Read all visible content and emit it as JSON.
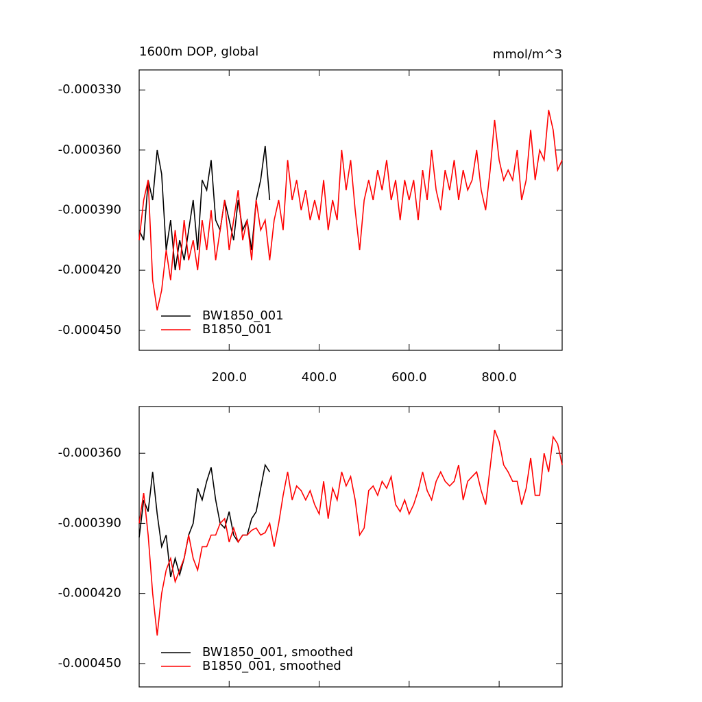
{
  "chart_data": [
    {
      "type": "line",
      "title": "1600m DOP, global",
      "units": "mmol/m^3",
      "xlim": [
        0,
        940
      ],
      "ylim": [
        -0.00046,
        -0.00032
      ],
      "xticks": [
        {
          "value": 200,
          "label": "200.0"
        },
        {
          "value": 400,
          "label": "400.0"
        },
        {
          "value": 600,
          "label": "600.0"
        },
        {
          "value": 800,
          "label": "800.0"
        }
      ],
      "yticks": [
        {
          "value": -0.00033,
          "label": "-0.000330"
        },
        {
          "value": -0.00036,
          "label": "-0.000360"
        },
        {
          "value": -0.00039,
          "label": "-0.000390"
        },
        {
          "value": -0.00042,
          "label": "-0.000420"
        },
        {
          "value": -0.00045,
          "label": "-0.000450"
        }
      ],
      "legend": "lower left",
      "series": [
        {
          "name": "BW1850_001",
          "color": "#000000",
          "x": [
            0,
            10,
            20,
            30,
            40,
            50,
            60,
            70,
            80,
            90,
            100,
            110,
            120,
            130,
            140,
            150,
            160,
            170,
            180,
            190,
            200,
            210,
            220,
            230,
            240,
            250,
            260,
            270,
            280,
            290
          ],
          "values": [
            -0.0004,
            -0.000405,
            -0.000375,
            -0.000385,
            -0.00036,
            -0.000372,
            -0.00041,
            -0.000395,
            -0.00042,
            -0.000405,
            -0.000415,
            -0.0004,
            -0.000385,
            -0.00041,
            -0.000375,
            -0.00038,
            -0.000365,
            -0.000395,
            -0.0004,
            -0.000385,
            -0.000395,
            -0.000405,
            -0.000385,
            -0.0004,
            -0.000395,
            -0.00041,
            -0.000385,
            -0.000375,
            -0.000358,
            -0.000385
          ]
        },
        {
          "name": "B1850_001",
          "color": "#ff0000",
          "x": [
            0,
            10,
            20,
            30,
            40,
            50,
            60,
            70,
            80,
            90,
            100,
            110,
            120,
            130,
            140,
            150,
            160,
            170,
            180,
            190,
            200,
            210,
            220,
            230,
            240,
            250,
            260,
            270,
            280,
            290,
            300,
            310,
            320,
            330,
            340,
            350,
            360,
            370,
            380,
            390,
            400,
            410,
            420,
            430,
            440,
            450,
            460,
            470,
            480,
            490,
            500,
            510,
            520,
            530,
            540,
            550,
            560,
            570,
            580,
            590,
            600,
            610,
            620,
            630,
            640,
            650,
            660,
            670,
            680,
            690,
            700,
            710,
            720,
            730,
            740,
            750,
            760,
            770,
            780,
            790,
            800,
            810,
            820,
            830,
            840,
            850,
            860,
            870,
            880,
            890,
            900,
            910,
            920,
            930,
            940
          ],
          "values": [
            -0.000405,
            -0.000385,
            -0.000375,
            -0.000425,
            -0.00044,
            -0.00043,
            -0.00041,
            -0.000425,
            -0.0004,
            -0.00042,
            -0.000395,
            -0.000415,
            -0.000405,
            -0.00042,
            -0.000395,
            -0.00041,
            -0.00039,
            -0.000415,
            -0.0004,
            -0.000385,
            -0.00041,
            -0.000395,
            -0.00038,
            -0.000405,
            -0.000395,
            -0.000415,
            -0.000385,
            -0.0004,
            -0.000395,
            -0.000415,
            -0.000395,
            -0.000385,
            -0.0004,
            -0.000365,
            -0.000385,
            -0.000375,
            -0.00039,
            -0.00038,
            -0.000395,
            -0.000385,
            -0.000395,
            -0.000375,
            -0.0004,
            -0.000385,
            -0.000395,
            -0.00036,
            -0.00038,
            -0.000365,
            -0.00039,
            -0.00041,
            -0.000385,
            -0.000375,
            -0.000385,
            -0.00037,
            -0.00038,
            -0.000365,
            -0.000385,
            -0.000375,
            -0.000395,
            -0.000375,
            -0.000385,
            -0.000375,
            -0.000395,
            -0.00037,
            -0.000385,
            -0.00036,
            -0.00038,
            -0.00039,
            -0.00037,
            -0.00038,
            -0.000365,
            -0.000385,
            -0.00037,
            -0.00038,
            -0.000375,
            -0.00036,
            -0.00038,
            -0.00039,
            -0.00037,
            -0.000345,
            -0.000365,
            -0.000375,
            -0.00037,
            -0.000375,
            -0.00036,
            -0.000385,
            -0.000375,
            -0.00035,
            -0.000375,
            -0.00036,
            -0.000365,
            -0.00034,
            -0.00035,
            -0.00037,
            -0.000365
          ]
        }
      ]
    },
    {
      "type": "line",
      "xlim": [
        0,
        940
      ],
      "ylim": [
        -0.00046,
        -0.00034
      ],
      "xticks": [
        200,
        400,
        600,
        800
      ],
      "yticks": [
        {
          "value": -0.00036,
          "label": "-0.000360"
        },
        {
          "value": -0.00039,
          "label": "-0.000390"
        },
        {
          "value": -0.00042,
          "label": "-0.000420"
        },
        {
          "value": -0.00045,
          "label": "-0.000450"
        }
      ],
      "legend": "lower left",
      "series": [
        {
          "name": "BW1850_001, smoothed",
          "color": "#000000",
          "x": [
            0,
            10,
            20,
            30,
            40,
            50,
            60,
            70,
            80,
            90,
            100,
            110,
            120,
            130,
            140,
            150,
            160,
            170,
            180,
            190,
            200,
            210,
            220,
            230,
            240,
            250,
            260,
            270,
            280,
            290
          ],
          "values": [
            -0.000396,
            -0.00038,
            -0.000385,
            -0.000368,
            -0.000386,
            -0.0004,
            -0.000395,
            -0.000413,
            -0.000405,
            -0.000412,
            -0.000405,
            -0.000395,
            -0.00039,
            -0.000375,
            -0.00038,
            -0.000372,
            -0.000366,
            -0.00038,
            -0.00039,
            -0.000392,
            -0.000385,
            -0.000395,
            -0.000398,
            -0.000395,
            -0.000395,
            -0.000388,
            -0.000385,
            -0.000375,
            -0.000365,
            -0.000368
          ]
        },
        {
          "name": "B1850_001, smoothed",
          "color": "#ff0000",
          "x": [
            0,
            10,
            20,
            30,
            40,
            50,
            60,
            70,
            80,
            90,
            100,
            110,
            120,
            130,
            140,
            150,
            160,
            170,
            180,
            190,
            200,
            210,
            220,
            230,
            240,
            250,
            260,
            270,
            280,
            290,
            300,
            310,
            320,
            330,
            340,
            350,
            360,
            370,
            380,
            390,
            400,
            410,
            420,
            430,
            440,
            450,
            460,
            470,
            480,
            490,
            500,
            510,
            520,
            530,
            540,
            550,
            560,
            570,
            580,
            590,
            600,
            610,
            620,
            630,
            640,
            650,
            660,
            670,
            680,
            690,
            700,
            710,
            720,
            730,
            740,
            750,
            760,
            770,
            780,
            790,
            800,
            810,
            820,
            830,
            840,
            850,
            860,
            870,
            880,
            890,
            900,
            910,
            920,
            930,
            940
          ],
          "values": [
            -0.00039,
            -0.000377,
            -0.000395,
            -0.00042,
            -0.000438,
            -0.00042,
            -0.00041,
            -0.000405,
            -0.000415,
            -0.00041,
            -0.000405,
            -0.000395,
            -0.000405,
            -0.00041,
            -0.0004,
            -0.0004,
            -0.000395,
            -0.000395,
            -0.00039,
            -0.000388,
            -0.000398,
            -0.000392,
            -0.000398,
            -0.000395,
            -0.000395,
            -0.000393,
            -0.000392,
            -0.000395,
            -0.000394,
            -0.00039,
            -0.0004,
            -0.00039,
            -0.000378,
            -0.000368,
            -0.00038,
            -0.000374,
            -0.000376,
            -0.00038,
            -0.000376,
            -0.000382,
            -0.000386,
            -0.000372,
            -0.000388,
            -0.000375,
            -0.00038,
            -0.000368,
            -0.000374,
            -0.00037,
            -0.00038,
            -0.000395,
            -0.000392,
            -0.000376,
            -0.000374,
            -0.000378,
            -0.000372,
            -0.000375,
            -0.00037,
            -0.000382,
            -0.000385,
            -0.00038,
            -0.000386,
            -0.000382,
            -0.000376,
            -0.000368,
            -0.000376,
            -0.00038,
            -0.000372,
            -0.000368,
            -0.000372,
            -0.000374,
            -0.000372,
            -0.000365,
            -0.00038,
            -0.000372,
            -0.00037,
            -0.000368,
            -0.000376,
            -0.000382,
            -0.000366,
            -0.00035,
            -0.000355,
            -0.000365,
            -0.000368,
            -0.000372,
            -0.000372,
            -0.000382,
            -0.000375,
            -0.000362,
            -0.000378,
            -0.000378,
            -0.00036,
            -0.000368,
            -0.000353,
            -0.000356,
            -0.000365
          ]
        }
      ]
    }
  ]
}
